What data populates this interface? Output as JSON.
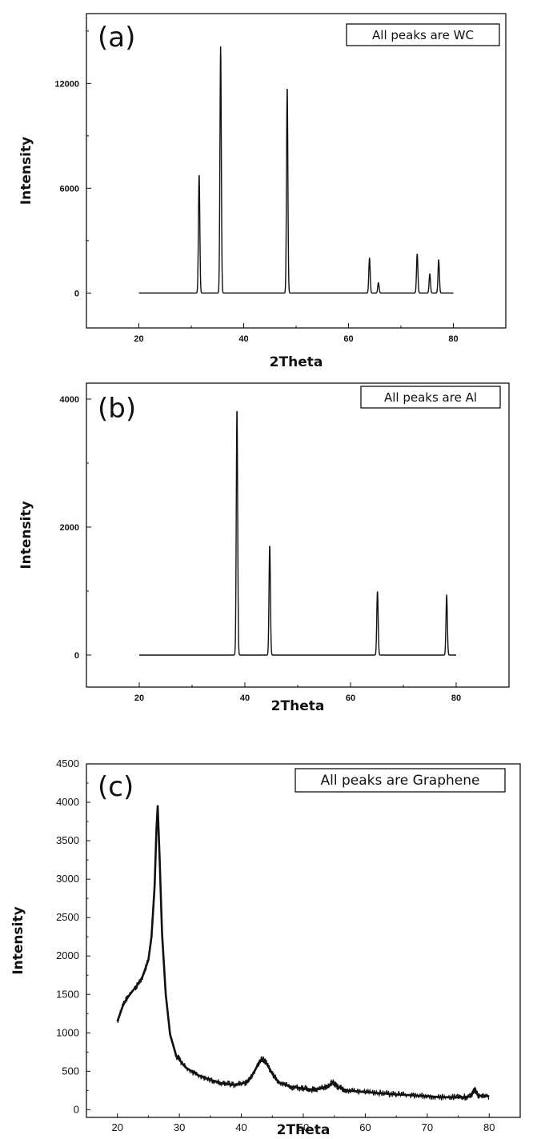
{
  "chart_data": [
    {
      "type": "line",
      "panel_label": "(a)",
      "annotation": "All peaks are WC",
      "xlabel": "2Theta",
      "ylabel": "Intensity",
      "xlim": [
        10,
        90
      ],
      "ylim": [
        -2000,
        16000
      ],
      "xticks": [
        20,
        40,
        60,
        80
      ],
      "yticks": [
        0,
        6000,
        12000
      ],
      "x_range": [
        20,
        80
      ],
      "baseline": 0,
      "peaks": [
        {
          "x": 31.5,
          "y": 6800
        },
        {
          "x": 35.6,
          "y": 14100
        },
        {
          "x": 48.3,
          "y": 11800
        },
        {
          "x": 64.0,
          "y": 2000
        },
        {
          "x": 65.7,
          "y": 600
        },
        {
          "x": 73.1,
          "y": 2250
        },
        {
          "x": 75.5,
          "y": 1100
        },
        {
          "x": 77.2,
          "y": 1900
        }
      ]
    },
    {
      "type": "line",
      "panel_label": "(b)",
      "annotation": "All peaks are Al",
      "xlabel": "2Theta",
      "ylabel": "Intensity",
      "xlim": [
        10,
        90
      ],
      "ylim": [
        -500,
        4250
      ],
      "xticks": [
        20,
        40,
        60,
        80
      ],
      "yticks": [
        0,
        2000,
        4000
      ],
      "x_range": [
        20,
        80
      ],
      "baseline": 0,
      "peaks": [
        {
          "x": 38.5,
          "y": 3850
        },
        {
          "x": 44.7,
          "y": 1720
        },
        {
          "x": 65.1,
          "y": 1000
        },
        {
          "x": 78.2,
          "y": 940
        }
      ]
    },
    {
      "type": "line",
      "panel_label": "(c)",
      "annotation": "All peaks are Graphene",
      "xlabel": "2Theta",
      "ylabel": "Intensity",
      "xlim": [
        15,
        85
      ],
      "ylim": [
        -100,
        4500
      ],
      "xticks": [
        20,
        30,
        40,
        50,
        60,
        70,
        80
      ],
      "yticks": [
        0,
        500,
        1000,
        1500,
        2000,
        2500,
        3000,
        3500,
        4000,
        4500
      ],
      "x": [
        20,
        21,
        22,
        23,
        24,
        25,
        25.5,
        26,
        26.3,
        26.5,
        26.8,
        27.2,
        27.8,
        28.5,
        29.5,
        31,
        33,
        35,
        37,
        39,
        41,
        42,
        43,
        43.5,
        44,
        45,
        46,
        48,
        50,
        52,
        54,
        54.7,
        55.5,
        57,
        60,
        63,
        66,
        69,
        72,
        75,
        77,
        77.6,
        78.2,
        80
      ],
      "y": [
        1150,
        1380,
        1500,
        1600,
        1720,
        1950,
        2250,
        2900,
        3650,
        3950,
        3300,
        2300,
        1500,
        980,
        700,
        550,
        450,
        390,
        340,
        320,
        360,
        480,
        640,
        660,
        610,
        470,
        360,
        300,
        275,
        260,
        300,
        360,
        300,
        250,
        230,
        210,
        195,
        180,
        165,
        160,
        170,
        270,
        185,
        175
      ]
    }
  ]
}
